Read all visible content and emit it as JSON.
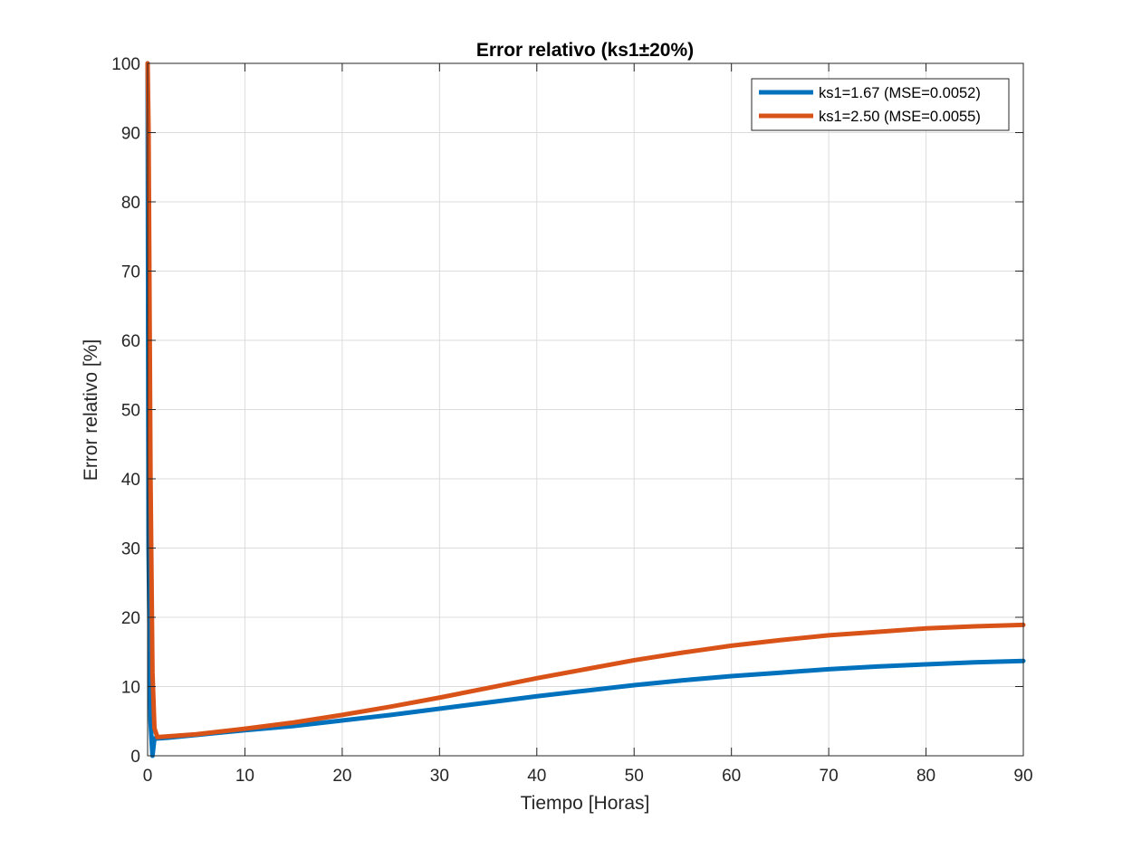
{
  "chart_data": {
    "type": "line",
    "title": "Error relativo (ks1±20%)",
    "xlabel": "Tiempo [Horas]",
    "ylabel": "Error relativo [%]",
    "xlim": [
      0,
      90
    ],
    "ylim": [
      0,
      100
    ],
    "x_ticks": [
      0,
      10,
      20,
      30,
      40,
      50,
      60,
      70,
      80,
      90
    ],
    "y_ticks": [
      0,
      10,
      20,
      30,
      40,
      50,
      60,
      70,
      80,
      90,
      100
    ],
    "grid": true,
    "legend_position": "top-right",
    "series": [
      {
        "name": "ks1=1.67 (MSE=0.0052)",
        "color": "#0072BD",
        "x": [
          0,
          0.1,
          0.3,
          0.5,
          0.7,
          1,
          2,
          5,
          10,
          15,
          20,
          25,
          30,
          35,
          40,
          45,
          50,
          55,
          60,
          65,
          70,
          75,
          80,
          85,
          90
        ],
        "y": [
          100,
          30,
          5,
          0,
          2.5,
          2.5,
          2.6,
          3.0,
          3.7,
          4.3,
          5.1,
          5.9,
          6.8,
          7.7,
          8.6,
          9.4,
          10.2,
          10.9,
          11.5,
          12.0,
          12.5,
          12.9,
          13.2,
          13.5,
          13.7
        ]
      },
      {
        "name": "ks1=2.50 (MSE=0.0055)",
        "color": "#D95319",
        "x": [
          0,
          0.1,
          0.3,
          0.5,
          0.7,
          1,
          2,
          5,
          10,
          15,
          20,
          25,
          30,
          35,
          40,
          45,
          50,
          55,
          60,
          65,
          70,
          75,
          80,
          85,
          90
        ],
        "y": [
          100,
          90,
          40,
          12,
          4,
          2.7,
          2.8,
          3.1,
          3.9,
          4.8,
          5.9,
          7.1,
          8.4,
          9.8,
          11.2,
          12.5,
          13.8,
          14.9,
          15.9,
          16.7,
          17.4,
          17.9,
          18.4,
          18.7,
          18.9
        ]
      }
    ]
  }
}
